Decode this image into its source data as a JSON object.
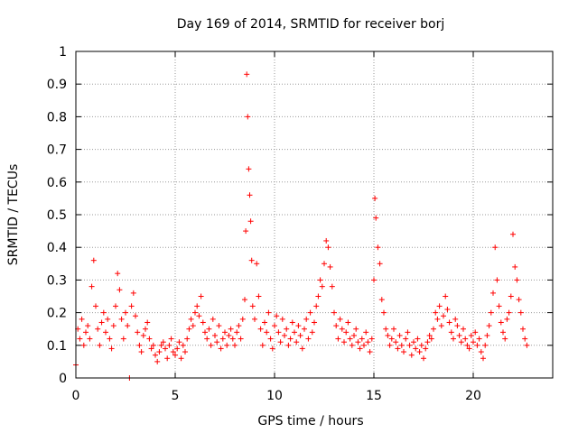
{
  "chart_data": {
    "type": "scatter",
    "title": "Day 169 of 2014, SRMTID for receiver borj",
    "xlabel": "GPS time / hours",
    "ylabel": "SRMTID / TECUs",
    "xlim": [
      0,
      24
    ],
    "ylim": [
      0,
      1
    ],
    "xticks": [
      0,
      5,
      10,
      15,
      20
    ],
    "xtick_labels": [
      "0",
      "5",
      "10",
      "15",
      "20"
    ],
    "yticks": [
      0,
      0.1,
      0.2,
      0.3,
      0.4,
      0.5,
      0.6,
      0.7,
      0.8,
      0.9,
      1
    ],
    "ytick_labels": [
      "0",
      "0.1",
      "0.2",
      "0.3",
      "0.4",
      "0.5",
      "0.6",
      "0.7",
      "0.8",
      "0.9",
      "1"
    ],
    "grid": true,
    "marker": "+",
    "marker_color": "#ff0000",
    "series": [
      {
        "name": "SRMTID",
        "x": [
          0.0,
          0.1,
          0.2,
          0.3,
          0.4,
          0.5,
          0.6,
          0.7,
          0.8,
          0.9,
          1.0,
          1.1,
          1.2,
          1.3,
          1.4,
          1.5,
          1.6,
          1.7,
          1.8,
          1.9,
          2.0,
          2.1,
          2.2,
          2.3,
          2.4,
          2.5,
          2.6,
          2.7,
          2.8,
          2.9,
          3.0,
          3.1,
          3.2,
          3.3,
          3.4,
          3.5,
          3.6,
          3.7,
          3.8,
          3.9,
          4.0,
          4.1,
          4.2,
          4.3,
          4.4,
          4.5,
          4.6,
          4.7,
          4.8,
          4.9,
          5.0,
          5.1,
          5.2,
          5.3,
          5.4,
          5.5,
          5.6,
          5.7,
          5.8,
          5.9,
          6.0,
          6.1,
          6.2,
          6.3,
          6.4,
          6.5,
          6.6,
          6.7,
          6.8,
          6.9,
          7.0,
          7.1,
          7.2,
          7.3,
          7.4,
          7.5,
          7.6,
          7.7,
          7.8,
          7.9,
          8.0,
          8.1,
          8.2,
          8.3,
          8.4,
          8.5,
          8.55,
          8.6,
          8.65,
          8.7,
          8.75,
          8.8,
          8.85,
          8.9,
          9.0,
          9.1,
          9.2,
          9.3,
          9.4,
          9.5,
          9.6,
          9.7,
          9.8,
          9.9,
          10.0,
          10.1,
          10.2,
          10.3,
          10.4,
          10.5,
          10.6,
          10.7,
          10.8,
          10.9,
          11.0,
          11.1,
          11.2,
          11.3,
          11.4,
          11.5,
          11.6,
          11.7,
          11.8,
          11.9,
          12.0,
          12.1,
          12.2,
          12.3,
          12.4,
          12.5,
          12.6,
          12.7,
          12.8,
          12.9,
          13.0,
          13.1,
          13.2,
          13.3,
          13.4,
          13.5,
          13.6,
          13.7,
          13.8,
          13.9,
          14.0,
          14.1,
          14.2,
          14.3,
          14.4,
          14.5,
          14.6,
          14.7,
          14.8,
          14.9,
          15.0,
          15.05,
          15.1,
          15.2,
          15.3,
          15.4,
          15.5,
          15.6,
          15.7,
          15.8,
          15.9,
          16.0,
          16.1,
          16.2,
          16.3,
          16.4,
          16.5,
          16.6,
          16.7,
          16.8,
          16.9,
          17.0,
          17.1,
          17.2,
          17.3,
          17.4,
          17.5,
          17.6,
          17.7,
          17.8,
          17.9,
          18.0,
          18.1,
          18.2,
          18.3,
          18.4,
          18.5,
          18.6,
          18.7,
          18.8,
          18.9,
          19.0,
          19.1,
          19.2,
          19.3,
          19.4,
          19.5,
          19.6,
          19.7,
          19.8,
          19.9,
          20.0,
          20.1,
          20.2,
          20.3,
          20.4,
          20.5,
          20.6,
          20.7,
          20.8,
          20.9,
          21.0,
          21.1,
          21.2,
          21.3,
          21.4,
          21.5,
          21.6,
          21.7,
          21.8,
          21.9,
          22.0,
          22.1,
          22.2,
          22.3,
          22.4,
          22.5,
          22.6,
          22.7
        ],
        "y": [
          0.04,
          0.15,
          0.12,
          0.18,
          0.1,
          0.14,
          0.16,
          0.12,
          0.28,
          0.36,
          0.22,
          0.15,
          0.1,
          0.17,
          0.2,
          0.14,
          0.18,
          0.12,
          0.09,
          0.16,
          0.22,
          0.32,
          0.27,
          0.18,
          0.12,
          0.2,
          0.16,
          0.0,
          0.22,
          0.26,
          0.19,
          0.14,
          0.1,
          0.08,
          0.13,
          0.15,
          0.17,
          0.12,
          0.09,
          0.1,
          0.07,
          0.05,
          0.08,
          0.1,
          0.11,
          0.09,
          0.06,
          0.1,
          0.12,
          0.08,
          0.07,
          0.09,
          0.11,
          0.06,
          0.1,
          0.08,
          0.12,
          0.15,
          0.18,
          0.16,
          0.2,
          0.22,
          0.19,
          0.25,
          0.17,
          0.14,
          0.12,
          0.15,
          0.1,
          0.18,
          0.13,
          0.11,
          0.16,
          0.09,
          0.12,
          0.14,
          0.1,
          0.13,
          0.15,
          0.12,
          0.1,
          0.14,
          0.16,
          0.12,
          0.18,
          0.24,
          0.45,
          0.93,
          0.8,
          0.64,
          0.56,
          0.48,
          0.36,
          0.22,
          0.18,
          0.35,
          0.25,
          0.15,
          0.1,
          0.17,
          0.14,
          0.2,
          0.12,
          0.09,
          0.16,
          0.19,
          0.14,
          0.11,
          0.18,
          0.13,
          0.15,
          0.1,
          0.12,
          0.17,
          0.14,
          0.11,
          0.16,
          0.13,
          0.09,
          0.15,
          0.18,
          0.12,
          0.2,
          0.14,
          0.17,
          0.22,
          0.25,
          0.3,
          0.28,
          0.35,
          0.42,
          0.4,
          0.34,
          0.28,
          0.2,
          0.16,
          0.12,
          0.18,
          0.15,
          0.11,
          0.14,
          0.17,
          0.12,
          0.1,
          0.13,
          0.15,
          0.11,
          0.09,
          0.12,
          0.1,
          0.14,
          0.11,
          0.08,
          0.12,
          0.3,
          0.55,
          0.49,
          0.4,
          0.35,
          0.24,
          0.2,
          0.15,
          0.13,
          0.1,
          0.12,
          0.15,
          0.11,
          0.09,
          0.13,
          0.1,
          0.08,
          0.12,
          0.14,
          0.1,
          0.07,
          0.11,
          0.09,
          0.12,
          0.08,
          0.1,
          0.06,
          0.09,
          0.11,
          0.13,
          0.12,
          0.15,
          0.2,
          0.18,
          0.22,
          0.16,
          0.19,
          0.25,
          0.21,
          0.17,
          0.14,
          0.12,
          0.18,
          0.16,
          0.13,
          0.11,
          0.15,
          0.12,
          0.1,
          0.09,
          0.13,
          0.11,
          0.14,
          0.1,
          0.12,
          0.08,
          0.06,
          0.1,
          0.13,
          0.16,
          0.2,
          0.26,
          0.4,
          0.3,
          0.22,
          0.17,
          0.14,
          0.12,
          0.18,
          0.2,
          0.25,
          0.44,
          0.34,
          0.3,
          0.24,
          0.2,
          0.15,
          0.12,
          0.1
        ]
      }
    ]
  }
}
